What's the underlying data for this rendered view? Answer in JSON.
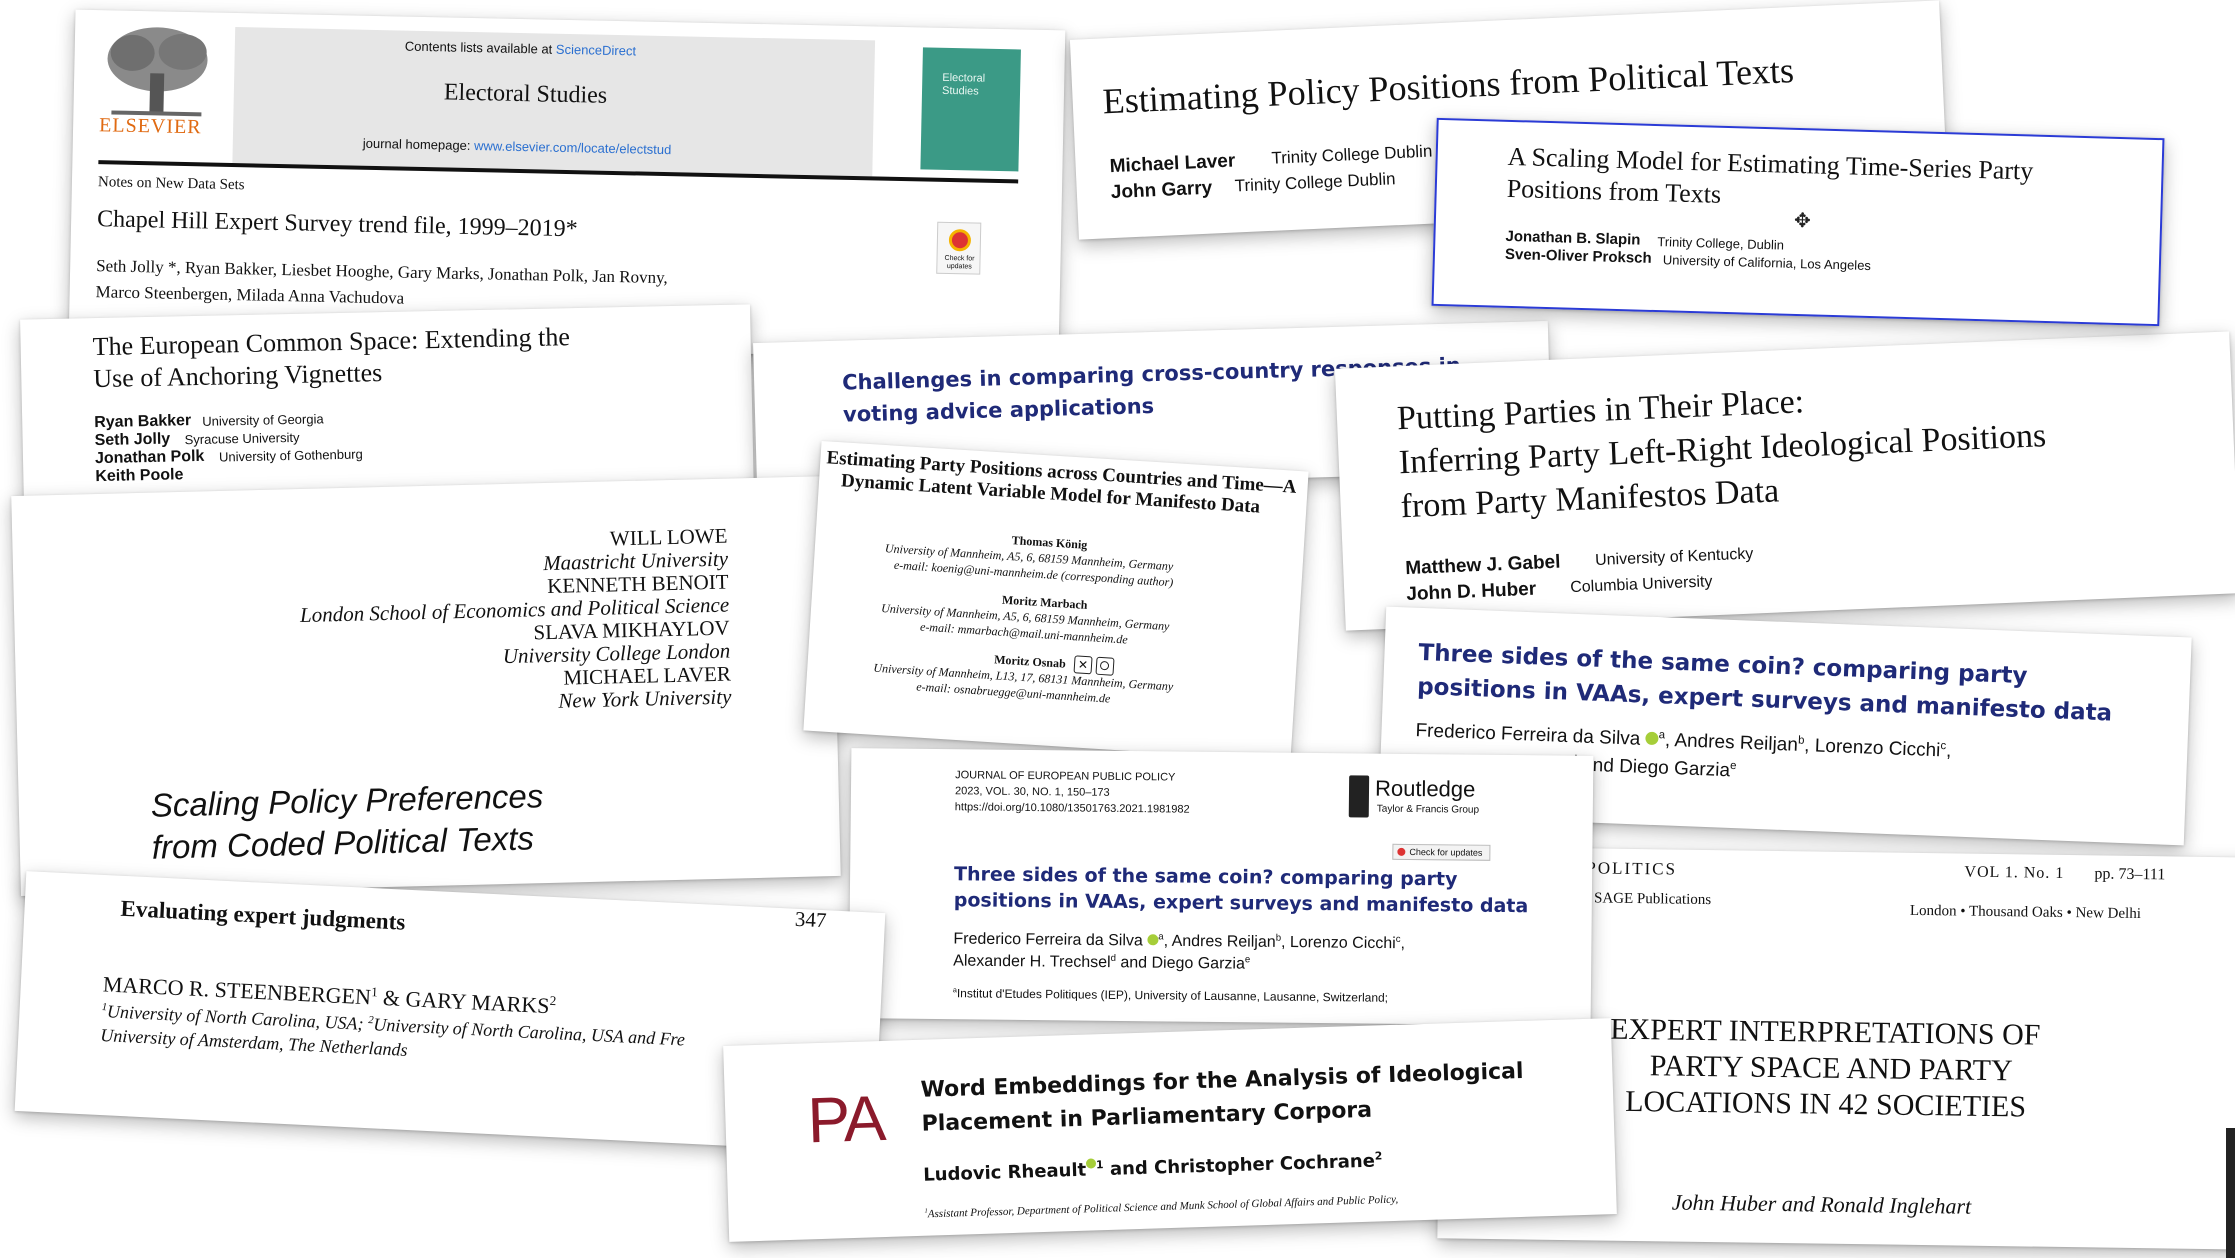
{
  "colors": {
    "elsevier_orange": "#e06a12",
    "journal_blue": "#1f2a78",
    "pa_red": "#8b1a2b",
    "cover_green": "#3b9a86",
    "frame_blue": "#2b3bd6"
  },
  "c1": {
    "publisher": "ELSEVIER",
    "contents_prefix": "Contents lists available at",
    "contents_link": "ScienceDirect",
    "journal": "Electoral Studies",
    "homepage_prefix": "journal homepage:",
    "homepage_link": "www.elsevier.com/locate/electstud",
    "cover_title": "Electoral Studies",
    "section": "Notes on New Data Sets",
    "title": "Chapel Hill Expert Survey trend file, 1999–2019*",
    "authors1": "Seth Jolly *, Ryan Bakker, Liesbet Hooghe, Gary Marks, Jonathan Polk, Jan Rovny,",
    "authors2": "Marco Steenbergen, Milada Anna Vachudova",
    "badge": "Check for updates"
  },
  "c2": {
    "title": "Estimating Policy Positions from Political Texts",
    "authors": [
      {
        "name": "Michael Laver",
        "aff": "Trinity College Dublin"
      },
      {
        "name": "John Garry",
        "aff": "Trinity College Dublin"
      }
    ]
  },
  "c3": {
    "title1": "A Scaling Model for Estimating Time-Series Party",
    "title2": "Positions from Texts",
    "authors": [
      {
        "name": "Jonathan B. Slapin",
        "aff": "Trinity College, Dublin"
      },
      {
        "name": "Sven-Oliver Proksch",
        "aff": "University of California, Los Angeles"
      }
    ]
  },
  "c4": {
    "title1": "The European Common Space: Extending the",
    "title2": "Use of Anchoring Vignettes",
    "authors": [
      {
        "name": "Ryan Bakker",
        "aff": "University of Georgia"
      },
      {
        "name": "Seth Jolly",
        "aff": "Syracuse University"
      },
      {
        "name": "Jonathan Polk",
        "aff": "University of Gothenburg"
      },
      {
        "name": "Keith Poole",
        "aff": ""
      }
    ]
  },
  "c5": {
    "title1": "Challenges in comparing cross-country responses in",
    "title2": "voting advice applications"
  },
  "c6": {
    "title1": "Putting Parties in Their Place:",
    "title2": "Inferring Party Left-Right Ideological Positions",
    "title3": "from Party Manifestos Data",
    "authors": [
      {
        "name": "Matthew J. Gabel",
        "aff": "University of Kentucky"
      },
      {
        "name": "John D. Huber",
        "aff": "Columbia University"
      }
    ]
  },
  "c7": {
    "lines": [
      {
        "text": "WILL LOWE",
        "style": "caps"
      },
      {
        "text": "Maastricht University",
        "style": "ital"
      },
      {
        "text": "KENNETH BENOIT",
        "style": "caps"
      },
      {
        "text": "London School of Economics and Political Science",
        "style": "ital"
      },
      {
        "text": "SLAVA MIKHAYLOV",
        "style": "caps"
      },
      {
        "text": "University College London",
        "style": "ital"
      },
      {
        "text": "MICHAEL LAVER",
        "style": "caps"
      },
      {
        "text": "New York University",
        "style": "ital"
      }
    ],
    "title1": "Scaling Policy Preferences",
    "title2": "from Coded Political Texts"
  },
  "c8": {
    "title1": "Estimating Party Positions across Countries and Time—A",
    "title2": "Dynamic Latent Variable Model for Manifesto Data",
    "blocks": [
      {
        "name": "Thomas König",
        "l1": "University of Mannheim, A5, 6, 68159 Mannheim, Germany",
        "l2": "e-mail: koenig@uni-mannheim.de (corresponding author)"
      },
      {
        "name": "Moritz Marbach",
        "l1": "University of Mannheim, A5, 6, 68159 Mannheim, Germany",
        "l2": "e-mail: mmarbach@mail.uni-mannheim.de"
      },
      {
        "name": "Moritz Osnab",
        "l1": "University of Mannheim, L13, 17, 68131 Mannheim, Germany",
        "l2": "e-mail: osnabruegge@uni-mannheim.de"
      }
    ]
  },
  "c9": {
    "title1": "Three sides of the same coin? comparing party",
    "title2": "positions in VAAs, expert surveys and manifesto data",
    "authors1": "Frederico Ferreira da Silva",
    "authors1b": ", Andres Reiljan",
    "authors1c": ", Lorenzo Cicchi",
    "authors2": "and Diego Garzia"
  },
  "c10": {
    "journal": "JOURNAL OF EUROPEAN PUBLIC POLICY",
    "volume": "2023, VOL. 30, NO. 1, 150–173",
    "doi": "https://doi.org/10.1080/13501763.2021.1981982",
    "publisher": "Routledge",
    "publisher_sub": "Taylor & Francis Group",
    "badge": "Check for updates",
    "title1": "Three sides of the same coin? comparing party",
    "title2": "positions in VAAs, expert surveys and manifesto data",
    "authors1": "Frederico Ferreira da Silva",
    "authors1b": ", Andres Reiljan",
    "authors1c": ", Lorenzo Cicchi",
    "authors2": "Alexander H. Trechsel",
    "authors2b": " and Diego Garzia",
    "affil": "Institut d'Etudes Politiques (IEP), University of Lausanne, Lausanne, Switzerland;"
  },
  "c11": {
    "page_number": "347",
    "title": "Evaluating expert judgments",
    "authors": "MARCO R. STEENBERGEN",
    "authors_b": " & GARY MARKS",
    "aff1": "University of North Carolina, USA;",
    "aff1b": "University of North Carolina, USA and Fre",
    "aff2": "University of Amsterdam, The Netherlands"
  },
  "c12": {
    "logo": "PA",
    "title1": "Word Embeddings for the Analysis of Ideological",
    "title2": "Placement in Parliamentary Corpora",
    "authors": "Ludovic Rheault",
    "authors_b": " and Christopher Cochrane",
    "affil": "Assistant Professor, Department of Political Science and Munk School of Global Affairs and Public Policy,"
  },
  "c13": {
    "journal": "Y POLITICS",
    "volume": "VOL 1. No. 1",
    "pages": "pp. 73–111",
    "publisher": "SAGE Publications",
    "place": "London • Thousand Oaks • New Delhi",
    "title1": "EXPERT INTERPRETATIONS OF",
    "title2": "PARTY SPACE AND PARTY",
    "title3": "LOCATIONS IN 42 SOCIETIES",
    "authors": "John Huber and Ronald Inglehart"
  }
}
